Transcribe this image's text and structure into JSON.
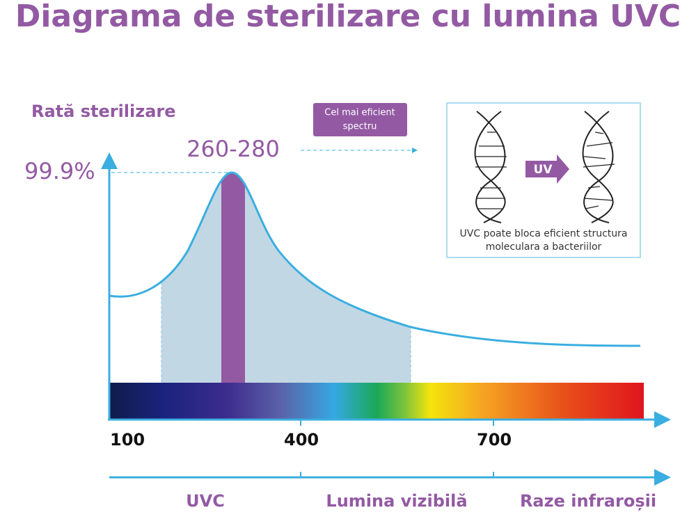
{
  "title": "Diagrama de sterilizare cu lumina UVC",
  "y_axis_label": "Rată sterilizare",
  "peak_value": "99.9%",
  "peak_range": "260-280",
  "callout": {
    "lines": [
      "Cel mai eficient",
      "spectru"
    ]
  },
  "inset": {
    "arrow_label": "UV",
    "caption": [
      "UVC poate bloca eficient structura",
      "moleculara a bacteriilor"
    ]
  },
  "x_ticks": [
    "100",
    "400",
    "700"
  ],
  "bands": [
    "UVC",
    "Lumina vizibilă",
    "Raze infraroșii"
  ]
}
